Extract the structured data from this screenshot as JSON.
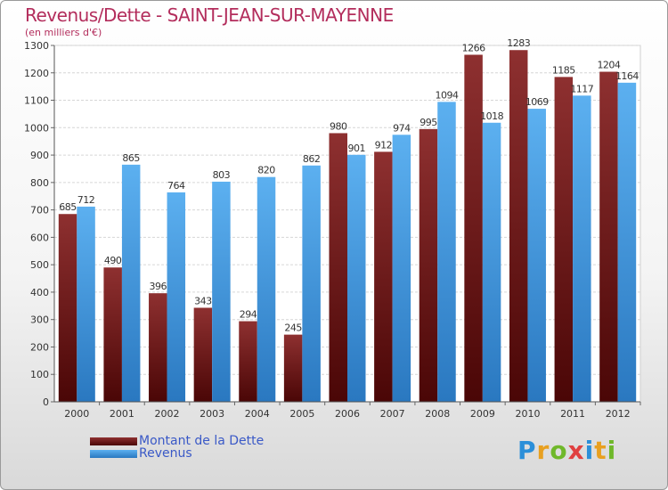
{
  "chart_data": {
    "type": "bar",
    "title": "Revenus/Dette - SAINT-JEAN-SUR-MAYENNE",
    "subtitle": "(en milliers d'€)",
    "categories": [
      "2000",
      "2001",
      "2002",
      "2003",
      "2004",
      "2005",
      "2006",
      "2007",
      "2008",
      "2009",
      "2010",
      "2011",
      "2012"
    ],
    "series": [
      {
        "name": "Montant de la Dette",
        "values": [
          685,
          490,
          396,
          343,
          294,
          245,
          980,
          912,
          995,
          1266,
          1283,
          1185,
          1204
        ],
        "color": "#7a1c1c"
      },
      {
        "name": "Revenus",
        "values": [
          712,
          865,
          764,
          803,
          820,
          862,
          901,
          974,
          1094,
          1018,
          1069,
          1117,
          1164
        ],
        "color": "#4fa3e8"
      }
    ],
    "ylim": [
      0,
      1300
    ],
    "yticks": [
      0,
      100,
      200,
      300,
      400,
      500,
      600,
      700,
      800,
      900,
      1000,
      1100,
      1200,
      1300
    ],
    "grid": true,
    "legend_position": "bottom-left"
  },
  "logo": {
    "text": "Proxiti"
  }
}
